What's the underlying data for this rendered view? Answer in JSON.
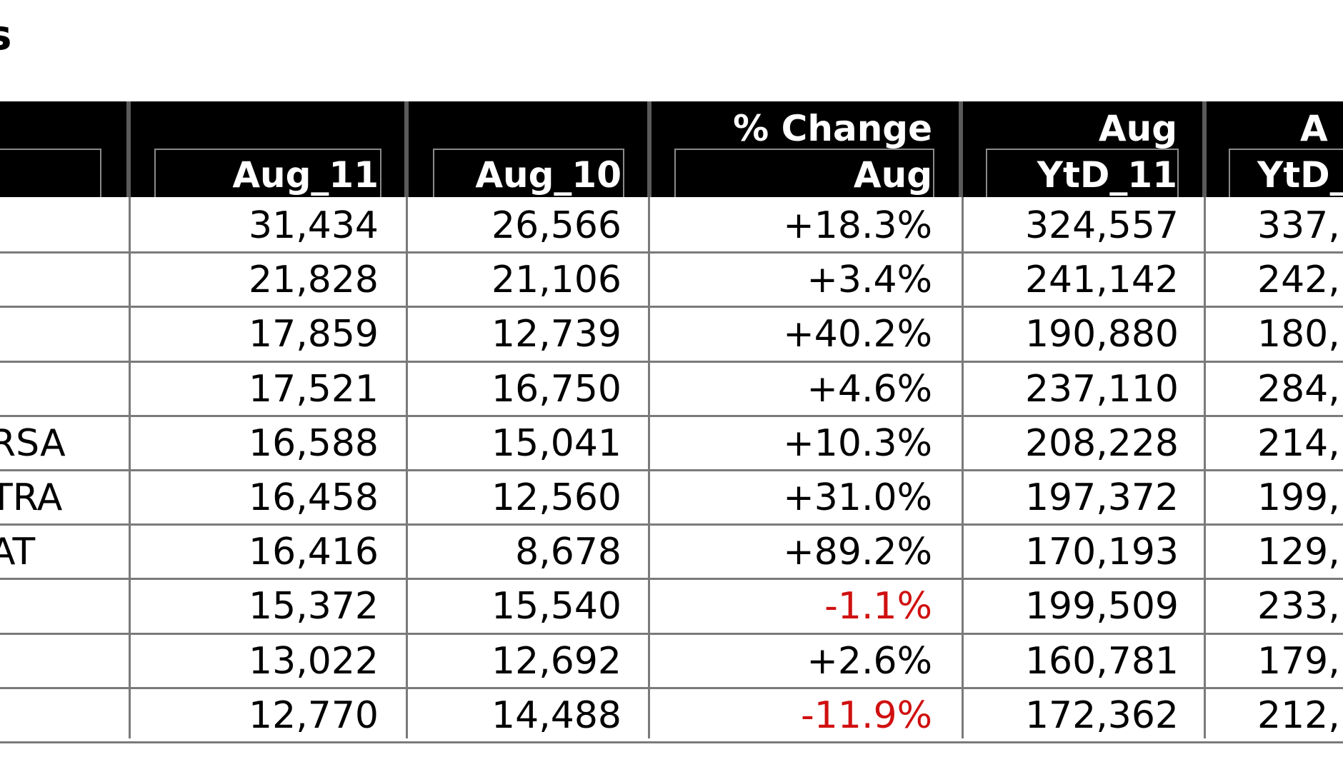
{
  "title_fragment": "s",
  "headers": {
    "aug_11": "Aug_11",
    "aug_10": "Aug_10",
    "pct_change_top": "% Change",
    "pct_change_bottom": "Aug",
    "ytd_11_top": "Aug",
    "ytd_11_bottom": "YtD_11",
    "ytd_10_top": "A",
    "ytd_10_bottom": "YtD_"
  },
  "rows": [
    {
      "name": "",
      "aug_11": "31,434",
      "aug_10": "26,566",
      "change": "+18.3%",
      "ytd_11": "324,557",
      "ytd_10": "337,"
    },
    {
      "name": "",
      "aug_11": "21,828",
      "aug_10": "21,106",
      "change": "+3.4%",
      "ytd_11": "241,142",
      "ytd_10": "242,"
    },
    {
      "name": "",
      "aug_11": "17,859",
      "aug_10": "12,739",
      "change": "+40.2%",
      "ytd_11": "190,880",
      "ytd_10": "180,"
    },
    {
      "name": "",
      "aug_11": "17,521",
      "aug_10": "16,750",
      "change": "+4.6%",
      "ytd_11": "237,110",
      "ytd_10": "284,"
    },
    {
      "name": "RSA",
      "aug_11": "16,588",
      "aug_10": "15,041",
      "change": "+10.3%",
      "ytd_11": "208,228",
      "ytd_10": "214,"
    },
    {
      "name": "TRA",
      "aug_11": "16,458",
      "aug_10": "12,560",
      "change": "+31.0%",
      "ytd_11": "197,372",
      "ytd_10": "199,"
    },
    {
      "name": "AT",
      "aug_11": "16,416",
      "aug_10": "8,678",
      "change": "+89.2%",
      "ytd_11": "170,193",
      "ytd_10": "129,"
    },
    {
      "name": "",
      "aug_11": "15,372",
      "aug_10": "15,540",
      "change": "-1.1%",
      "ytd_11": "199,509",
      "ytd_10": "233,"
    },
    {
      "name": "",
      "aug_11": "13,022",
      "aug_10": "12,692",
      "change": "+2.6%",
      "ytd_11": "160,781",
      "ytd_10": "179,"
    },
    {
      "name": "",
      "aug_11": "12,770",
      "aug_10": "14,488",
      "change": "-11.9%",
      "ytd_11": "172,362",
      "ytd_10": "212,"
    }
  ],
  "colors": {
    "header_bg": "#000000",
    "negative": "#d01010",
    "grid": "#7a7a7a"
  }
}
